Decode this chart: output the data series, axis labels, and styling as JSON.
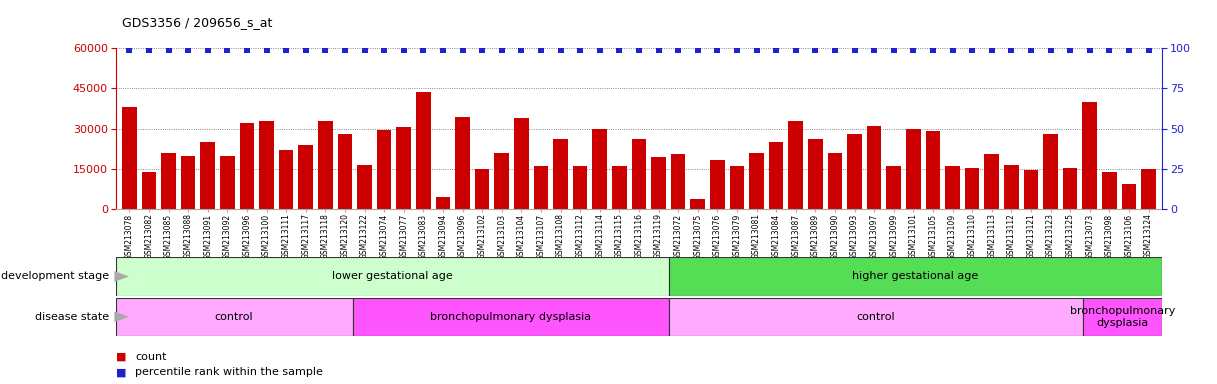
{
  "title": "GDS3356 / 209656_s_at",
  "sample_labels": [
    "GSM213078",
    "GSM213082",
    "GSM213085",
    "GSM213088",
    "GSM213091",
    "GSM213092",
    "GSM213096",
    "GSM213100",
    "GSM213111",
    "GSM213117",
    "GSM213118",
    "GSM213120",
    "GSM213122",
    "GSM213074",
    "GSM213077",
    "GSM213083",
    "GSM213094",
    "GSM213096",
    "GSM213102",
    "GSM213103",
    "GSM213104",
    "GSM213107",
    "GSM213108",
    "GSM213112",
    "GSM213114",
    "GSM213115",
    "GSM213116",
    "GSM213119",
    "GSM213072",
    "GSM213075",
    "GSM213076",
    "GSM213079",
    "GSM213081",
    "GSM213084",
    "GSM213087",
    "GSM213089",
    "GSM213090",
    "GSM213093",
    "GSM213097",
    "GSM213099",
    "GSM213101",
    "GSM213105",
    "GSM213109",
    "GSM213110",
    "GSM213113",
    "GSM213112",
    "GSM213121",
    "GSM213123",
    "GSM213125",
    "GSM213073",
    "GSM213098",
    "GSM213106",
    "GSM213124"
  ],
  "counts": [
    38000,
    14000,
    21000,
    20000,
    25000,
    20000,
    32000,
    33000,
    22000,
    24000,
    33000,
    28000,
    16500,
    29500,
    30500,
    43500,
    4500,
    34500,
    15000,
    21000,
    34000,
    16000,
    26000,
    16000,
    30000,
    16000,
    26000,
    19500,
    20500,
    4000,
    18500,
    16000,
    21000,
    25000,
    33000,
    26000,
    21000,
    28000,
    31000,
    16000,
    30000,
    29000,
    16000,
    15500,
    20500,
    16500,
    14500,
    28000,
    15500,
    40000,
    14000,
    9500,
    15000
  ],
  "percentile_ranks": [
    99,
    99,
    99,
    99,
    99,
    99,
    99,
    99,
    99,
    99,
    99,
    99,
    99,
    99,
    99,
    99,
    99,
    99,
    99,
    99,
    99,
    99,
    99,
    99,
    99,
    99,
    99,
    99,
    99,
    99,
    99,
    99,
    99,
    99,
    99,
    99,
    99,
    99,
    99,
    99,
    99,
    99,
    99,
    99,
    99,
    99,
    99,
    99,
    99,
    99,
    99,
    99,
    99
  ],
  "bar_color": "#cc0000",
  "dot_color": "#2222cc",
  "ylim_left": [
    0,
    60000
  ],
  "yticks_left": [
    0,
    15000,
    30000,
    45000,
    60000
  ],
  "ylim_right": [
    0,
    100
  ],
  "yticks_right": [
    0,
    25,
    50,
    75,
    100
  ],
  "dev_stage_groups": [
    {
      "label": "lower gestational age",
      "start": 0,
      "end": 28,
      "color": "#ccffcc"
    },
    {
      "label": "higher gestational age",
      "start": 28,
      "end": 53,
      "color": "#55dd55"
    }
  ],
  "disease_groups": [
    {
      "label": "control",
      "start": 0,
      "end": 12,
      "color": "#ffaaff"
    },
    {
      "label": "bronchopulmonary dysplasia",
      "start": 12,
      "end": 28,
      "color": "#ff55ff"
    },
    {
      "label": "control",
      "start": 28,
      "end": 49,
      "color": "#ffaaff"
    },
    {
      "label": "bronchopulmonary\ndysplasia",
      "start": 49,
      "end": 53,
      "color": "#ff55ff"
    }
  ],
  "left_labels": [
    "development stage",
    "disease state"
  ],
  "legend_count_label": "count",
  "legend_pct_label": "percentile rank within the sample",
  "legend_count_color": "#cc0000",
  "legend_pct_color": "#2222cc"
}
